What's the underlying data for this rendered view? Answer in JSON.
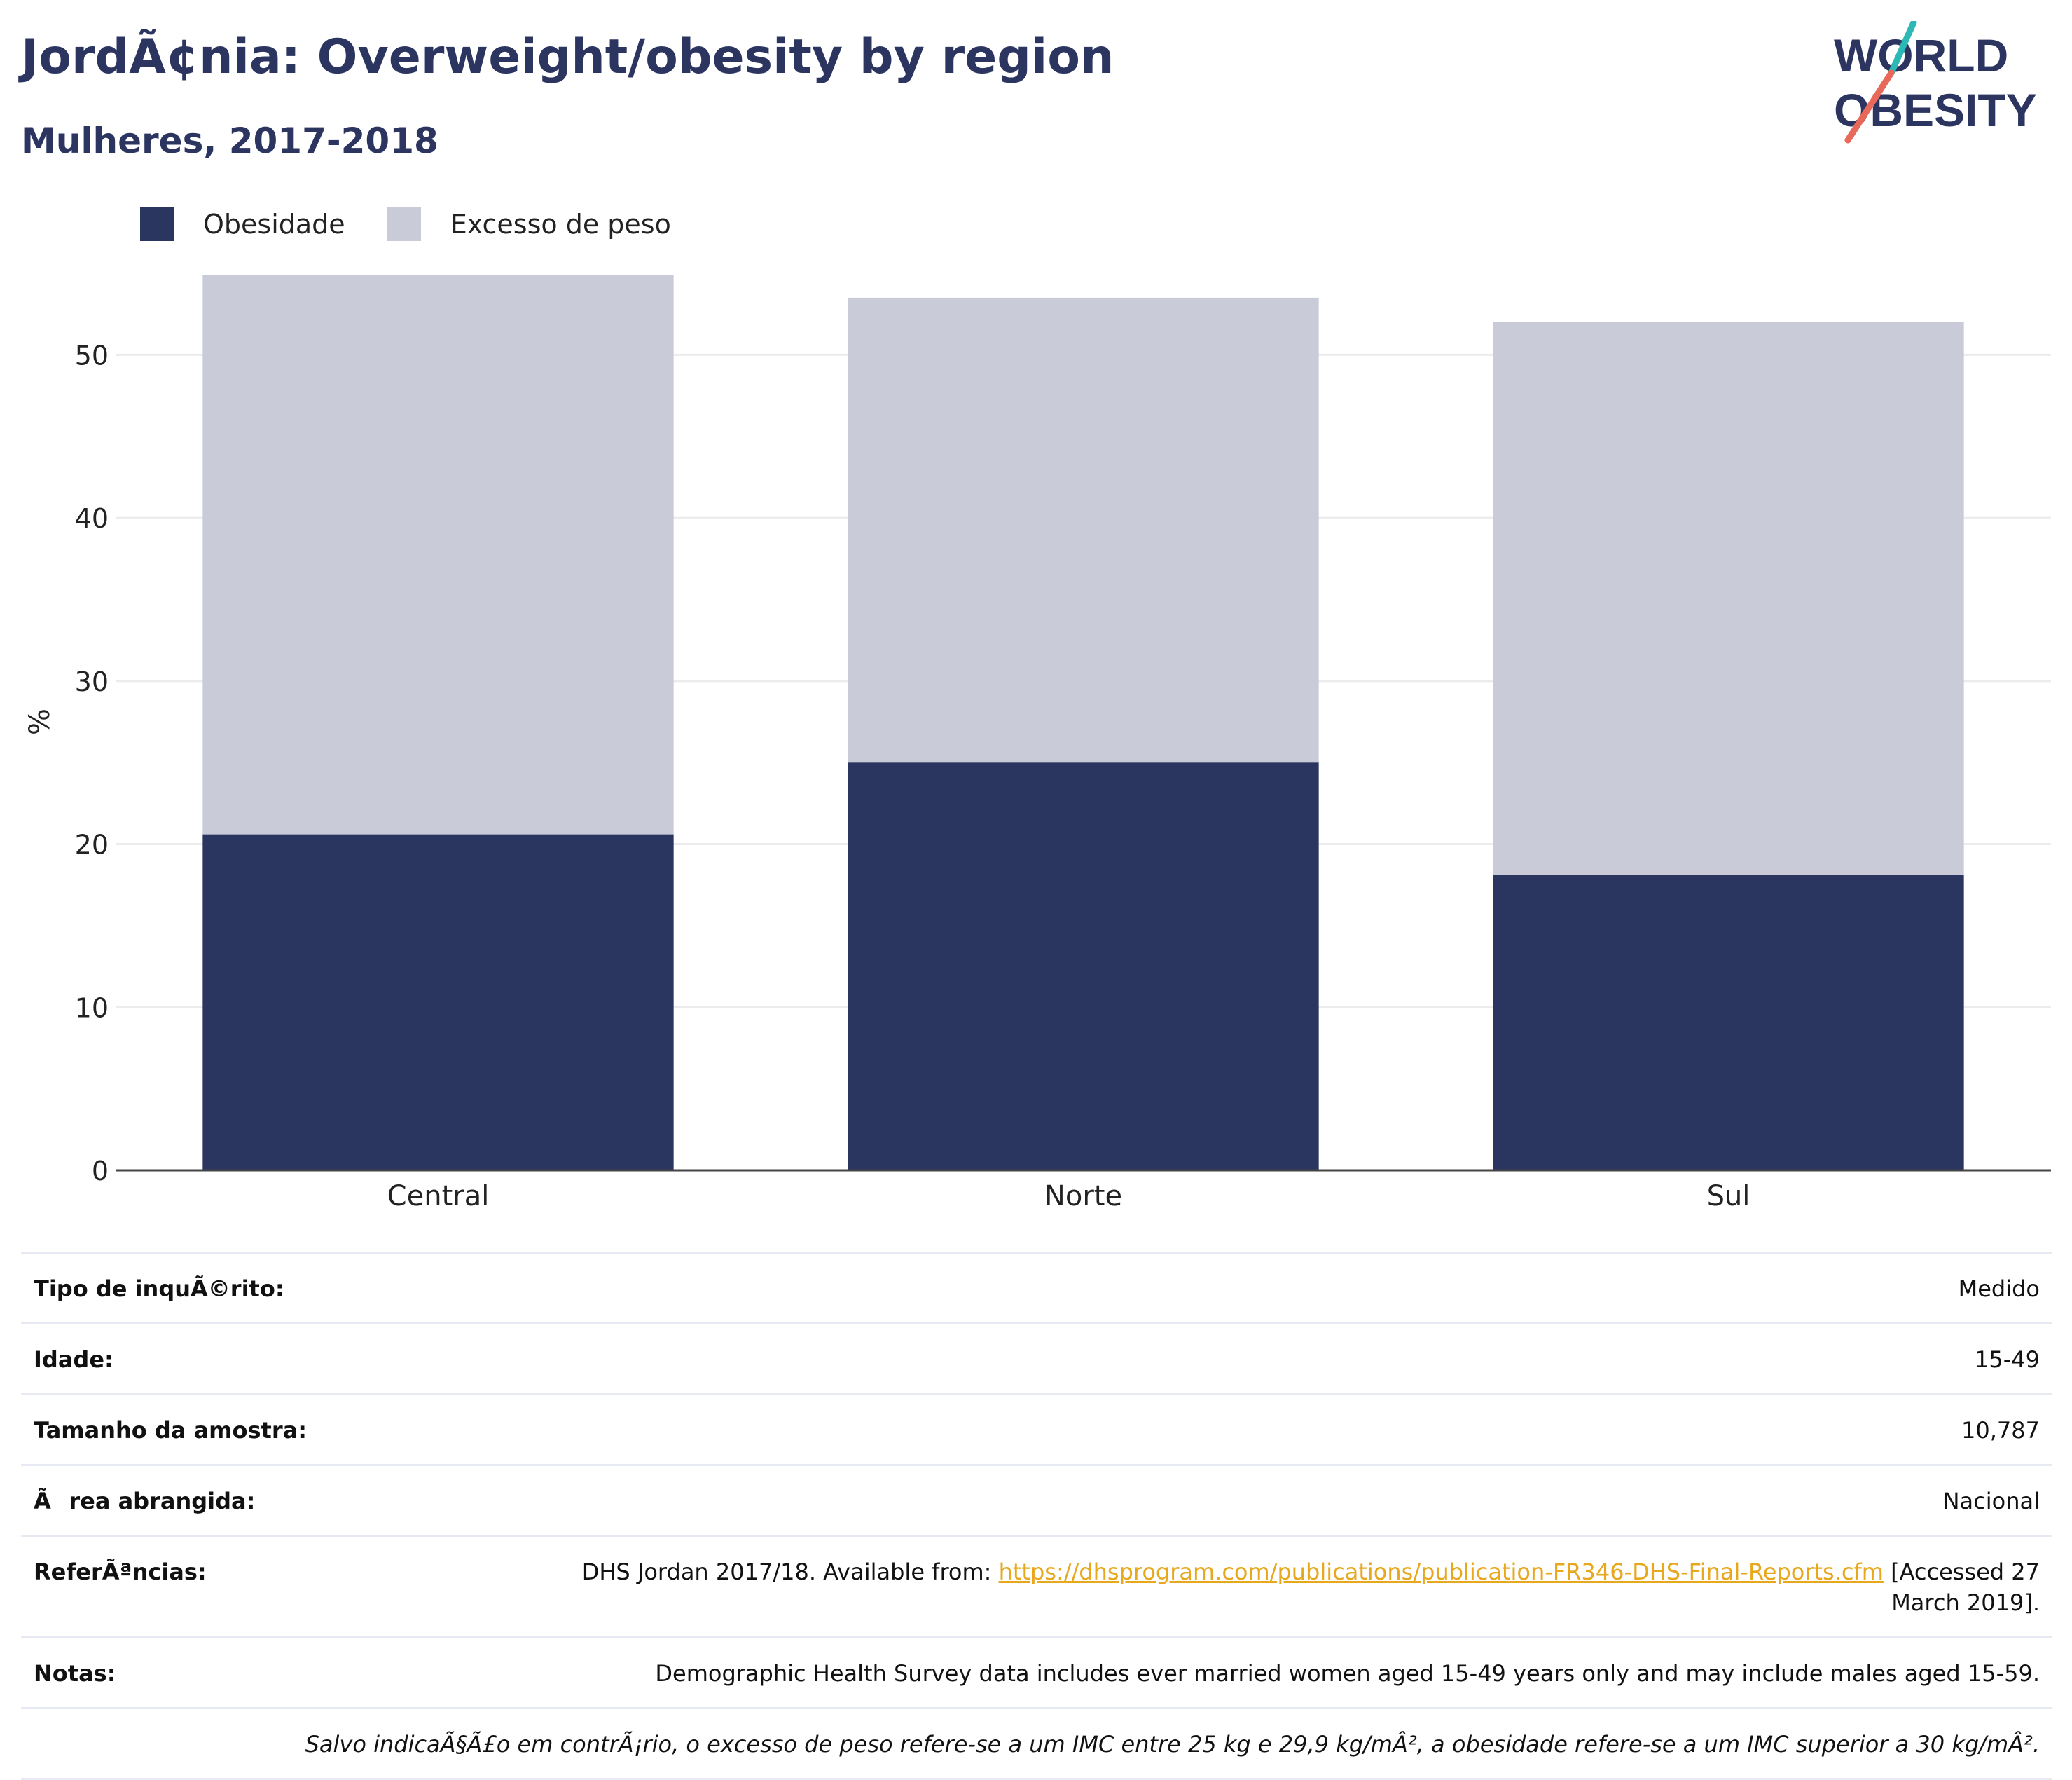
{
  "header": {
    "title": "JordÃ¢nia: Overweight/obesity by region",
    "subtitle": "Mulheres, 2017-2018"
  },
  "logo": {
    "line1": "WORLD",
    "line2": "OBESITY"
  },
  "colors": {
    "obesity": "#2b3660",
    "overweight": "#c9ccd8",
    "title": "#2b3560",
    "link": "#e7a81e",
    "logo_teal": "#2cb8b5",
    "logo_coral": "#e8685a"
  },
  "legend": [
    {
      "label": "Obesidade",
      "color_key": "obesity"
    },
    {
      "label": "Excesso de peso",
      "color_key": "overweight"
    }
  ],
  "chart_data": {
    "type": "bar",
    "stacked": true,
    "categories": [
      "Central",
      "Norte",
      "Sul"
    ],
    "series": [
      {
        "name": "Obesidade",
        "values": [
          20.6,
          25.0,
          18.1
        ]
      },
      {
        "name": "Excesso de peso",
        "values": [
          34.3,
          28.5,
          33.9
        ]
      }
    ],
    "ylabel": "%",
    "ylim": [
      0,
      55
    ],
    "yticks": [
      0,
      10,
      20,
      30,
      40,
      50
    ],
    "grid": true,
    "legend_position": "top-left"
  },
  "info": {
    "survey_type": {
      "label": "Tipo de inquÃ©rito:",
      "value": "Medido"
    },
    "age": {
      "label": "Idade:",
      "value": "15-49"
    },
    "sample_size": {
      "label": "Tamanho da amostra:",
      "value": "10,787"
    },
    "area": {
      "label": "Ãrea abrangida:",
      "value": "Nacional"
    },
    "references": {
      "label": "ReferÃªncias:",
      "prefix": "DHS Jordan 2017/18. Available from: ",
      "link": "https://dhsprogram.com/publications/publication-FR346-DHS-Final-Reports.cfm",
      "suffix": " [Accessed 27 March 2019]."
    },
    "notes": {
      "label": "Notas:",
      "value": "Demographic Health Survey data includes ever married women aged 15-49 years only and may include males aged 15-59."
    },
    "footnote": "Salvo indicaÃ§Ã£o em contrÃ¡rio, o excesso de peso refere-se a um IMC entre 25 kg e 29,9 kg/mÂ², a obesidade refere-se a um IMC superior a 30 kg/mÂ²."
  }
}
